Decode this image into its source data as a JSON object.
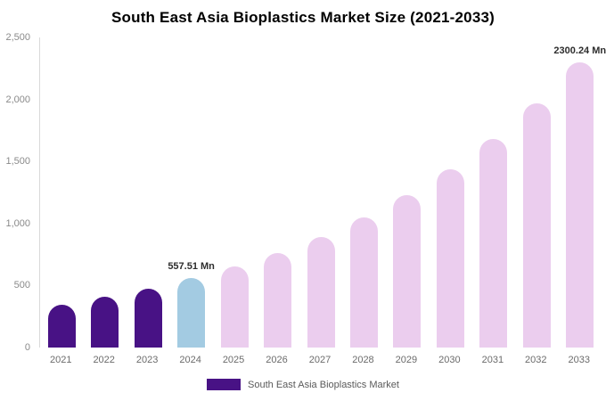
{
  "chart_data": {
    "type": "bar",
    "title": "South East Asia Bioplastics Market Size (2021-2033)",
    "categories": [
      "2021",
      "2022",
      "2023",
      "2024",
      "2025",
      "2026",
      "2027",
      "2028",
      "2029",
      "2030",
      "2031",
      "2032",
      "2033"
    ],
    "values": [
      348,
      407,
      476,
      557.51,
      653,
      764,
      894,
      1047,
      1225,
      1434,
      1679,
      1965,
      2300.24
    ],
    "xlabel": "",
    "ylabel": "",
    "ylim": [
      0,
      2500
    ],
    "yticks": [
      0,
      500,
      1000,
      1500,
      2000,
      2500
    ],
    "ytick_labels": [
      "0",
      "500",
      "1,000",
      "1,500",
      "2,000",
      "2,500"
    ],
    "grid": "off",
    "legend_position": "bottom-center",
    "annotations": [
      {
        "index": 3,
        "text": "557.51 Mn"
      },
      {
        "index": 12,
        "text": "2300.24 Mn"
      }
    ],
    "colors": {
      "dark": "#481285",
      "blue": "#a3cbe2",
      "pink": "#ebcdee"
    },
    "bar_color_keys": [
      "dark",
      "dark",
      "dark",
      "blue",
      "pink",
      "pink",
      "pink",
      "pink",
      "pink",
      "pink",
      "pink",
      "pink",
      "pink"
    ]
  },
  "legend": {
    "label": "South East Asia Bioplastics Market",
    "swatch_color": "#481285"
  }
}
